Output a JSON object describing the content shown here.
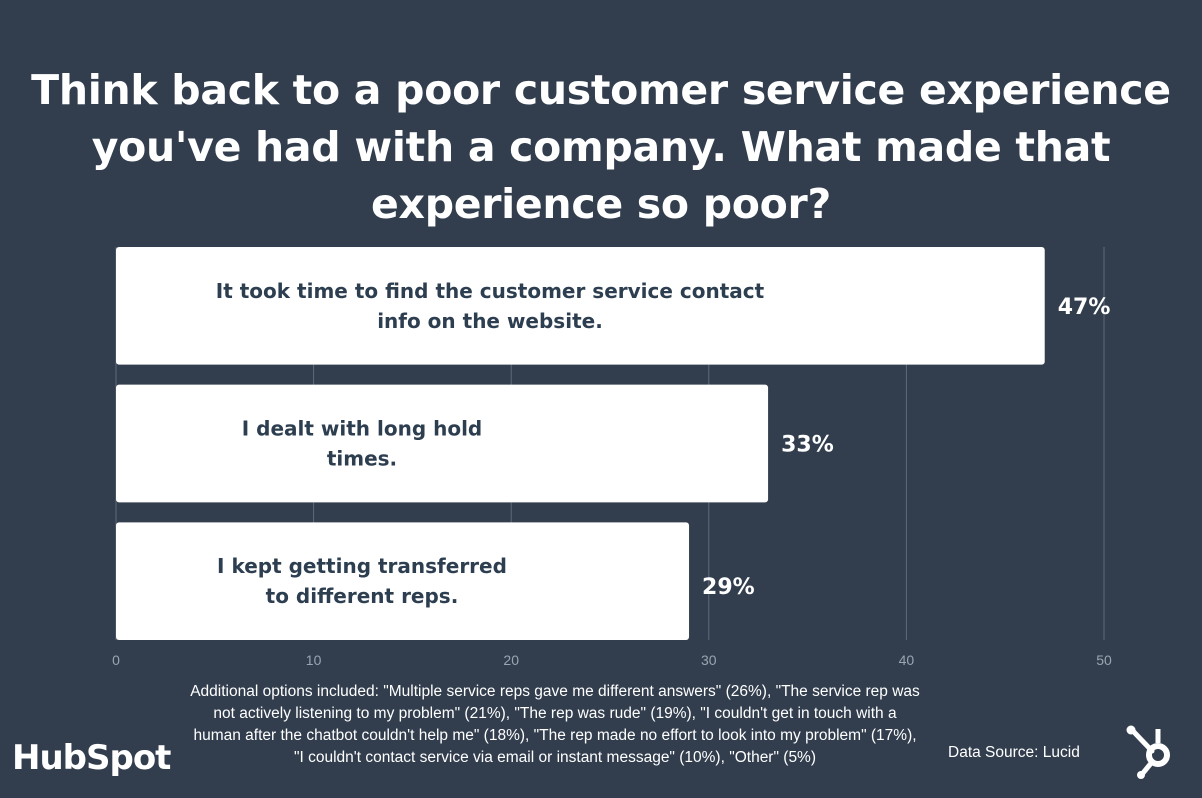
{
  "chart_data": {
    "type": "bar",
    "orientation": "horizontal",
    "title": "Think back to a poor customer service experience you've had with a company. What made that experience so poor?",
    "categories": [
      "It took time to find the customer service contact info on the website.",
      "I dealt with long hold times.",
      "I kept getting transferred to different reps."
    ],
    "values": [
      47,
      33,
      29
    ],
    "data_labels": [
      "47%",
      "33%",
      "29%"
    ],
    "xlim": [
      0,
      50
    ],
    "x_ticks": [
      0,
      10,
      20,
      30,
      40,
      50
    ],
    "grid": true,
    "bar_color": "#ffffff",
    "background_color": "#323e4e",
    "label_color": "#2d3e50"
  },
  "footnote": "Additional options included: \"Multiple service reps gave me different answers\" (26%), \"The service rep was not actively listening to my problem\" (21%), \"The rep was rude\" (19%),  \"I couldn't get in touch with a human after the chatbot couldn't help me\" (18%), \"The rep made no effort to look into my problem\" (17%), \"I couldn't contact service via email or instant message\" (10%), \"Other\" (5%)",
  "source": "Data Source: Lucid",
  "logo": "HubSpot",
  "logo_icon": "hubspot-sprocket-icon"
}
